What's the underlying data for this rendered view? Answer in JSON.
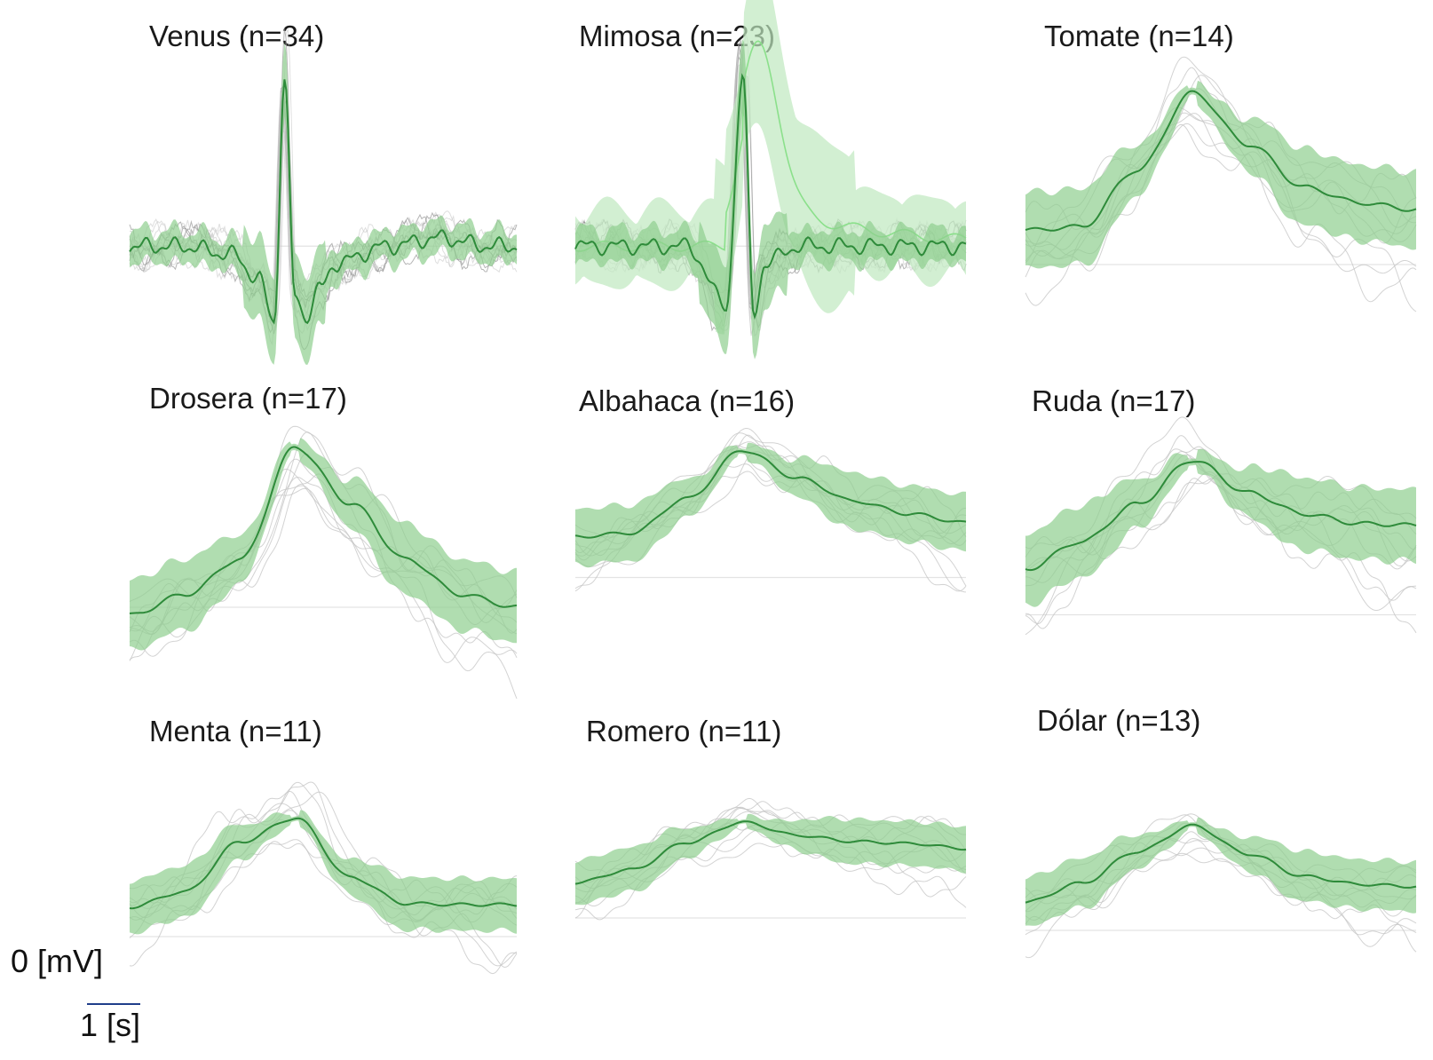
{
  "figure": {
    "colors": {
      "mean_line": "#2e8b3a",
      "band": "#8fcf8f",
      "band_light": "#bfe8bf",
      "mean_light": "#8be08b",
      "trials": "#c4c4c4",
      "trials_dark": "#7a7a7a",
      "baseline": "#e3e3e3"
    }
  },
  "scale_bars": {
    "y_label": "0 [mV]",
    "x_label": "1 [s]",
    "x_bar_duration_s": 1
  },
  "chart_data": [
    {
      "type": "line",
      "title": "Venus (n=34)",
      "waveform": "biphasic",
      "n_trials": 34,
      "series": [
        {
          "name": "",
          "x": [
            -3,
            -2,
            -1,
            -0.5,
            -0.2,
            0,
            0.2,
            0.4,
            0.7,
            1,
            2,
            3,
            4,
            4.5
          ],
          "values": [
            0.0,
            0.0,
            -0.05,
            -0.2,
            -0.45,
            1.0,
            -0.3,
            -0.42,
            -0.25,
            -0.1,
            0.0,
            0.05,
            0.0,
            0.0
          ]
        }
      ]
    },
    {
      "type": "line",
      "title": "Mimosa (n=23)",
      "waveform": "biphasic-mixed",
      "n_trials": 23,
      "series": [
        {
          "name": "",
          "x": [
            -3,
            -2,
            -1,
            -0.3,
            0,
            0.2,
            0.4,
            1,
            2,
            3,
            4
          ],
          "values": [
            0.0,
            0.0,
            0.0,
            -0.35,
            1.0,
            -0.4,
            -0.1,
            0.0,
            0.0,
            0.0,
            0.0
          ]
        }
      ]
    },
    {
      "type": "line",
      "title": "Tomate (n=14)",
      "waveform": "peak",
      "n_trials": 14,
      "series": [
        {
          "name": "",
          "x": [
            -3,
            -2,
            -1,
            0,
            1,
            2,
            3,
            4
          ],
          "values": [
            0.2,
            0.22,
            0.55,
            1.0,
            0.7,
            0.45,
            0.36,
            0.32
          ]
        }
      ]
    },
    {
      "type": "line",
      "title": "Drosera (n=17)",
      "waveform": "peak",
      "n_trials": 17,
      "series": [
        {
          "name": "",
          "x": [
            -3,
            -2,
            -1,
            0,
            1,
            2,
            3,
            4
          ],
          "values": [
            -0.05,
            0.08,
            0.3,
            1.0,
            0.65,
            0.3,
            0.08,
            0.0
          ]
        }
      ]
    },
    {
      "type": "line",
      "title": "Albahaca (n=16)",
      "waveform": "peak",
      "n_trials": 16,
      "series": [
        {
          "name": "",
          "x": [
            -3,
            -2,
            -1,
            0,
            1,
            2,
            3,
            4
          ],
          "values": [
            0.32,
            0.35,
            0.62,
            1.0,
            0.78,
            0.6,
            0.5,
            0.43
          ]
        }
      ]
    },
    {
      "type": "line",
      "title": "Ruda (n=17)",
      "waveform": "peak",
      "n_trials": 17,
      "series": [
        {
          "name": "",
          "x": [
            -3,
            -2,
            -1,
            0,
            1,
            2,
            3,
            4
          ],
          "values": [
            0.28,
            0.45,
            0.68,
            0.95,
            0.75,
            0.62,
            0.56,
            0.55
          ]
        }
      ]
    },
    {
      "type": "line",
      "title": "Menta (n=11)",
      "waveform": "peak",
      "n_trials": 11,
      "series": [
        {
          "name": "",
          "x": [
            -3,
            -2,
            -1,
            0,
            1,
            2,
            3,
            4
          ],
          "values": [
            0.25,
            0.38,
            0.8,
            1.0,
            0.5,
            0.28,
            0.27,
            0.27
          ]
        }
      ]
    },
    {
      "type": "line",
      "title": "Romero (n=11)",
      "waveform": "peak",
      "n_trials": 11,
      "series": [
        {
          "name": "",
          "x": [
            -3,
            -2,
            -1,
            0,
            1,
            2,
            3,
            4
          ],
          "values": [
            0.35,
            0.48,
            0.75,
            0.95,
            0.82,
            0.76,
            0.74,
            0.69
          ]
        }
      ]
    },
    {
      "type": "line",
      "title": "Dólar (n=13)",
      "waveform": "peak",
      "n_trials": 13,
      "series": [
        {
          "name": "",
          "x": [
            -3,
            -2,
            -1,
            0,
            1,
            2,
            3,
            4
          ],
          "values": [
            0.25,
            0.42,
            0.7,
            0.93,
            0.68,
            0.48,
            0.41,
            0.39
          ]
        }
      ]
    }
  ]
}
